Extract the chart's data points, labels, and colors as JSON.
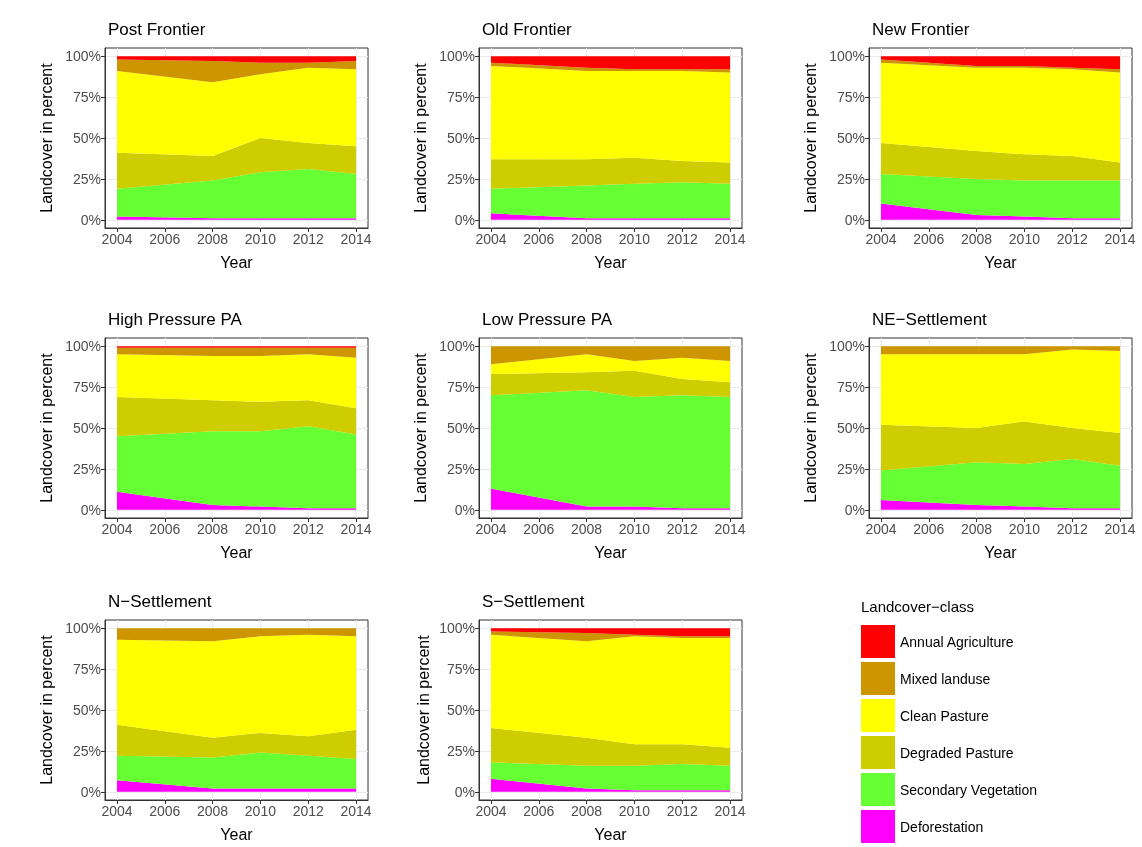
{
  "chart_data": [
    {
      "type": "area",
      "title": "Post Frontier",
      "xlabel": "Year",
      "ylabel": "Landcover in percent",
      "x": [
        2004,
        2008,
        2010,
        2012,
        2014
      ],
      "xlim": [
        2003.5,
        2014.5
      ],
      "xticks": [
        2004,
        2006,
        2008,
        2010,
        2012,
        2014
      ],
      "ylim": [
        -5,
        105
      ],
      "yticks": [
        {
          "value": 0,
          "label": "0%"
        },
        {
          "value": 25,
          "label": "25%"
        },
        {
          "value": 50,
          "label": "50%"
        },
        {
          "value": 75,
          "label": "75%"
        },
        {
          "value": 100,
          "label": "100%"
        }
      ],
      "stacked": true,
      "grid": true,
      "series": [
        {
          "color": "#ff00ff",
          "values": [
            2,
            1,
            1,
            1,
            1
          ]
        },
        {
          "color": "#66ff33",
          "values": [
            17,
            23,
            28,
            30,
            27
          ]
        },
        {
          "color": "#cdcd00",
          "values": [
            22,
            15,
            21,
            16,
            17
          ]
        },
        {
          "color": "#ffff00",
          "values": [
            50,
            45,
            39,
            46,
            47
          ]
        },
        {
          "color": "#cd9600",
          "values": [
            7,
            13,
            7,
            3,
            5
          ]
        },
        {
          "color": "#ff0000",
          "values": [
            2,
            3,
            4,
            4,
            3
          ]
        }
      ]
    },
    {
      "type": "area",
      "title": "Old Frontier",
      "xlabel": "Year",
      "ylabel": "Landcover in percent",
      "x": [
        2004,
        2008,
        2010,
        2012,
        2014
      ],
      "xlim": [
        2003.5,
        2014.5
      ],
      "xticks": [
        2004,
        2006,
        2008,
        2010,
        2012,
        2014
      ],
      "ylim": [
        -5,
        105
      ],
      "yticks": [
        {
          "value": 0,
          "label": "0%"
        },
        {
          "value": 25,
          "label": "25%"
        },
        {
          "value": 50,
          "label": "50%"
        },
        {
          "value": 75,
          "label": "75%"
        },
        {
          "value": 100,
          "label": "100%"
        }
      ],
      "stacked": true,
      "grid": true,
      "series": [
        {
          "color": "#ff00ff",
          "values": [
            4,
            1,
            1,
            1,
            1
          ]
        },
        {
          "color": "#66ff33",
          "values": [
            15,
            20,
            21,
            22,
            21
          ]
        },
        {
          "color": "#cdcd00",
          "values": [
            18,
            16,
            16,
            13,
            13
          ]
        },
        {
          "color": "#ffff00",
          "values": [
            57,
            54,
            53,
            55,
            55
          ]
        },
        {
          "color": "#cd9600",
          "values": [
            2,
            2,
            1,
            1,
            2
          ]
        },
        {
          "color": "#ff0000",
          "values": [
            4,
            7,
            8,
            8,
            8
          ]
        }
      ]
    },
    {
      "type": "area",
      "title": "New Frontier",
      "xlabel": "Year",
      "ylabel": "Landcover in percent",
      "x": [
        2004,
        2008,
        2010,
        2012,
        2014
      ],
      "xlim": [
        2003.5,
        2014.5
      ],
      "xticks": [
        2004,
        2006,
        2008,
        2010,
        2012,
        2014
      ],
      "ylim": [
        -5,
        105
      ],
      "yticks": [
        {
          "value": 0,
          "label": "0%"
        },
        {
          "value": 25,
          "label": "25%"
        },
        {
          "value": 50,
          "label": "50%"
        },
        {
          "value": 75,
          "label": "75%"
        },
        {
          "value": 100,
          "label": "100%"
        }
      ],
      "stacked": true,
      "grid": true,
      "series": [
        {
          "color": "#ff00ff",
          "values": [
            10,
            3,
            2,
            1,
            1
          ]
        },
        {
          "color": "#66ff33",
          "values": [
            18,
            22,
            22,
            23,
            23
          ]
        },
        {
          "color": "#cdcd00",
          "values": [
            19,
            17,
            16,
            15,
            11
          ]
        },
        {
          "color": "#ffff00",
          "values": [
            49,
            51,
            53,
            53,
            55
          ]
        },
        {
          "color": "#cd9600",
          "values": [
            2,
            1,
            1,
            1,
            2
          ]
        },
        {
          "color": "#ff0000",
          "values": [
            2,
            6,
            6,
            7,
            8
          ]
        }
      ]
    },
    {
      "type": "area",
      "title": "High Pressure PA",
      "xlabel": "Year",
      "ylabel": "Landcover in percent",
      "x": [
        2004,
        2008,
        2010,
        2012,
        2014
      ],
      "xlim": [
        2003.5,
        2014.5
      ],
      "xticks": [
        2004,
        2006,
        2008,
        2010,
        2012,
        2014
      ],
      "ylim": [
        -5,
        105
      ],
      "yticks": [
        {
          "value": 0,
          "label": "0%"
        },
        {
          "value": 25,
          "label": "25%"
        },
        {
          "value": 50,
          "label": "50%"
        },
        {
          "value": 75,
          "label": "75%"
        },
        {
          "value": 100,
          "label": "100%"
        }
      ],
      "stacked": true,
      "grid": true,
      "series": [
        {
          "color": "#ff00ff",
          "values": [
            11,
            3,
            2,
            1,
            1
          ]
        },
        {
          "color": "#66ff33",
          "values": [
            34,
            45,
            46,
            50,
            45
          ]
        },
        {
          "color": "#cdcd00",
          "values": [
            24,
            19,
            18,
            16,
            16
          ]
        },
        {
          "color": "#ffff00",
          "values": [
            26,
            27,
            28,
            28,
            31
          ]
        },
        {
          "color": "#cd9600",
          "values": [
            4,
            5,
            5,
            4,
            6
          ]
        },
        {
          "color": "#ff0000",
          "values": [
            1,
            1,
            1,
            1,
            1
          ]
        }
      ]
    },
    {
      "type": "area",
      "title": "Low Pressure PA",
      "xlabel": "Year",
      "ylabel": "Landcover in percent",
      "x": [
        2004,
        2008,
        2010,
        2012,
        2014
      ],
      "xlim": [
        2003.5,
        2014.5
      ],
      "xticks": [
        2004,
        2006,
        2008,
        2010,
        2012,
        2014
      ],
      "ylim": [
        -5,
        105
      ],
      "yticks": [
        {
          "value": 0,
          "label": "0%"
        },
        {
          "value": 25,
          "label": "25%"
        },
        {
          "value": 50,
          "label": "50%"
        },
        {
          "value": 75,
          "label": "75%"
        },
        {
          "value": 100,
          "label": "100%"
        }
      ],
      "stacked": true,
      "grid": true,
      "series": [
        {
          "color": "#ff00ff",
          "values": [
            13,
            2,
            2,
            1,
            1
          ]
        },
        {
          "color": "#66ff33",
          "values": [
            57,
            71,
            67,
            69,
            68
          ]
        },
        {
          "color": "#cdcd00",
          "values": [
            13,
            11,
            16,
            10,
            9
          ]
        },
        {
          "color": "#ffff00",
          "values": [
            6,
            11,
            6,
            13,
            13
          ]
        },
        {
          "color": "#cd9600",
          "values": [
            11,
            5,
            9,
            7,
            9
          ]
        }
      ]
    },
    {
      "type": "area",
      "title": "NE−Settlement",
      "xlabel": "Year",
      "ylabel": "Landcover in percent",
      "x": [
        2004,
        2008,
        2010,
        2012,
        2014
      ],
      "xlim": [
        2003.5,
        2014.5
      ],
      "xticks": [
        2004,
        2006,
        2008,
        2010,
        2012,
        2014
      ],
      "ylim": [
        -5,
        105
      ],
      "yticks": [
        {
          "value": 0,
          "label": "0%"
        },
        {
          "value": 25,
          "label": "25%"
        },
        {
          "value": 50,
          "label": "50%"
        },
        {
          "value": 75,
          "label": "75%"
        },
        {
          "value": 100,
          "label": "100%"
        }
      ],
      "stacked": true,
      "grid": true,
      "series": [
        {
          "color": "#ff00ff",
          "values": [
            6,
            3,
            2,
            1,
            1
          ]
        },
        {
          "color": "#66ff33",
          "values": [
            18,
            26,
            26,
            30,
            26
          ]
        },
        {
          "color": "#cdcd00",
          "values": [
            28,
            21,
            26,
            19,
            20
          ]
        },
        {
          "color": "#ffff00",
          "values": [
            43,
            45,
            41,
            48,
            50
          ]
        },
        {
          "color": "#cd9600",
          "values": [
            5,
            5,
            5,
            2,
            3
          ]
        }
      ]
    },
    {
      "type": "area",
      "title": "N−Settlement",
      "xlabel": "Year",
      "ylabel": "Landcover in percent",
      "x": [
        2004,
        2008,
        2010,
        2012,
        2014
      ],
      "xlim": [
        2003.5,
        2014.5
      ],
      "xticks": [
        2004,
        2006,
        2008,
        2010,
        2012,
        2014
      ],
      "ylim": [
        -5,
        105
      ],
      "yticks": [
        {
          "value": 0,
          "label": "0%"
        },
        {
          "value": 25,
          "label": "25%"
        },
        {
          "value": 50,
          "label": "50%"
        },
        {
          "value": 75,
          "label": "75%"
        },
        {
          "value": 100,
          "label": "100%"
        }
      ],
      "stacked": true,
      "grid": true,
      "series": [
        {
          "color": "#ff00ff",
          "values": [
            7,
            2,
            2,
            2,
            2
          ]
        },
        {
          "color": "#66ff33",
          "values": [
            15,
            19,
            22,
            20,
            18
          ]
        },
        {
          "color": "#cdcd00",
          "values": [
            19,
            12,
            12,
            12,
            18
          ]
        },
        {
          "color": "#ffff00",
          "values": [
            52,
            59,
            59,
            62,
            57
          ]
        },
        {
          "color": "#cd9600",
          "values": [
            7,
            8,
            5,
            4,
            5
          ]
        }
      ]
    },
    {
      "type": "area",
      "title": "S−Settlement",
      "xlabel": "Year",
      "ylabel": "Landcover in percent",
      "x": [
        2004,
        2008,
        2010,
        2012,
        2014
      ],
      "xlim": [
        2003.5,
        2014.5
      ],
      "xticks": [
        2004,
        2006,
        2008,
        2010,
        2012,
        2014
      ],
      "ylim": [
        -5,
        105
      ],
      "yticks": [
        {
          "value": 0,
          "label": "0%"
        },
        {
          "value": 25,
          "label": "25%"
        },
        {
          "value": 50,
          "label": "50%"
        },
        {
          "value": 75,
          "label": "75%"
        },
        {
          "value": 100,
          "label": "100%"
        }
      ],
      "stacked": true,
      "grid": true,
      "legend": "right",
      "legend_title": "Landcover−class",
      "series": [
        {
          "name": "Deforestation",
          "color": "#ff00ff",
          "values": [
            8,
            2,
            1,
            1,
            1
          ]
        },
        {
          "name": "Secondary Vegetation",
          "color": "#66ff33",
          "values": [
            10,
            14,
            15,
            16,
            15
          ]
        },
        {
          "name": "Degraded Pasture",
          "color": "#cdcd00",
          "values": [
            21,
            17,
            13,
            12,
            11
          ]
        },
        {
          "name": "Clean Pasture",
          "color": "#ffff00",
          "values": [
            57,
            59,
            66,
            65,
            67
          ]
        },
        {
          "name": "Mixed landuse",
          "color": "#cd9600",
          "values": [
            2,
            5,
            1,
            1,
            1
          ]
        },
        {
          "name": "Annual Agriculture",
          "color": "#ff0000",
          "values": [
            2,
            3,
            4,
            5,
            5
          ]
        }
      ]
    }
  ]
}
